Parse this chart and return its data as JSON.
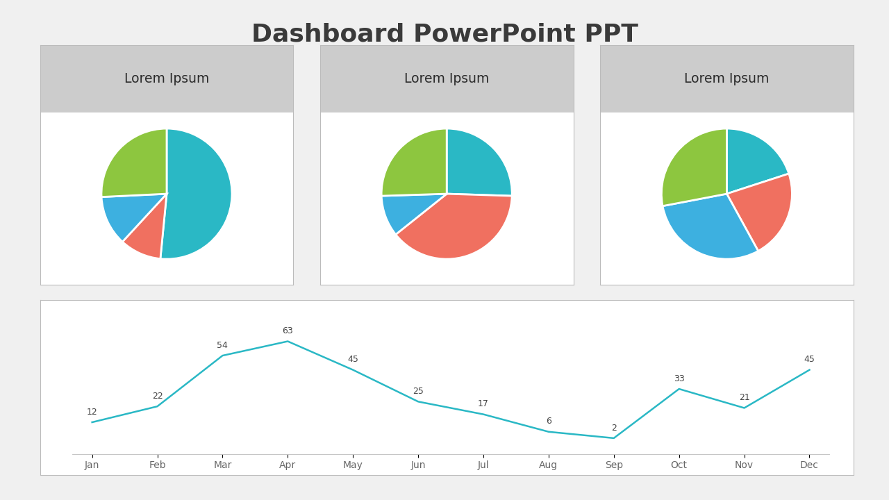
{
  "title": "Dashboard PowerPoint PPT",
  "title_fontsize": 26,
  "title_color": "#3a3a3a",
  "bg_color": "#f0f0f0",
  "pie_title": "Lorem Ipsum",
  "pie_title_bg": "#cccccc",
  "pie_card_bg": "#ffffff",
  "pie_colors_teal": "#2ab8c5",
  "pie_colors_red": "#f07060",
  "pie_colors_blue": "#3db0e0",
  "pie_colors_green": "#8dc63f",
  "pie1_values": [
    50,
    10,
    12,
    25
  ],
  "pie1_colors_order": [
    "teal",
    "red",
    "blue",
    "green"
  ],
  "pie1_startangle": 90,
  "pie2_values": [
    25,
    38,
    10,
    25
  ],
  "pie2_colors_order": [
    "teal",
    "red",
    "blue",
    "green"
  ],
  "pie2_startangle": 90,
  "pie3_values": [
    20,
    22,
    30,
    28
  ],
  "pie3_colors_order": [
    "teal",
    "red",
    "blue",
    "green"
  ],
  "pie3_startangle": 90,
  "months": [
    "Jan",
    "Feb",
    "Mar",
    "Apr",
    "May",
    "Jun",
    "Jul",
    "Aug",
    "Sep",
    "Oct",
    "Nov",
    "Dec"
  ],
  "line_values": [
    12,
    22,
    54,
    63,
    45,
    25,
    17,
    6,
    2,
    33,
    21,
    45
  ],
  "line_color": "#2ab8c5",
  "line_width": 1.8,
  "line_card_bg": "#ffffff",
  "annotation_fontsize": 9,
  "annotation_color": "#444444",
  "month_fontsize": 10,
  "month_color": "#666666"
}
